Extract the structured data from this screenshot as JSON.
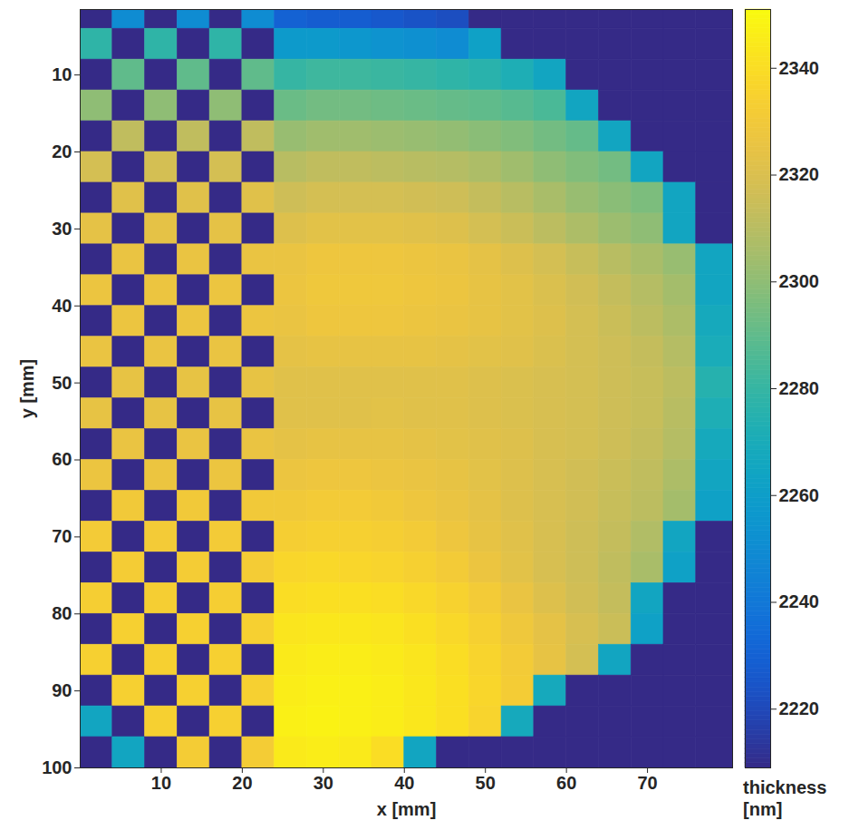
{
  "chart_data": {
    "type": "heatmap",
    "x_label": "x [mm]",
    "y_label": "y [mm]",
    "xlim": [
      0,
      80.5
    ],
    "ylim": [
      100,
      1.5
    ],
    "xticks": [
      10,
      20,
      30,
      40,
      50,
      60,
      70
    ],
    "yticks": [
      10,
      20,
      30,
      40,
      50,
      60,
      70,
      80,
      90,
      100
    ],
    "grid": false,
    "colorbar": {
      "label": "thickness [nm]",
      "range": [
        2209,
        2351
      ],
      "ticks": [
        2220,
        2240,
        2260,
        2280,
        2300,
        2320,
        2340
      ]
    },
    "cells": {
      "x_edges": [
        0,
        4,
        8,
        12,
        16,
        20,
        24,
        28,
        32,
        36,
        40,
        44,
        48,
        52,
        56,
        60,
        64,
        68,
        72,
        76,
        80.5
      ],
      "y_edges": [
        1.5,
        4,
        8,
        12,
        16,
        20,
        24,
        28,
        32,
        36,
        40,
        44,
        48,
        52,
        56,
        60,
        64,
        68,
        72,
        76,
        80,
        84,
        88,
        92,
        96,
        100
      ],
      "values": [
        [
          2209,
          2250,
          2209,
          2250,
          2209,
          2250,
          2230,
          2228,
          2228,
          2226,
          2224,
          2222,
          2209,
          2209,
          2209,
          2209,
          2209,
          2209,
          2209,
          2209
        ],
        [
          2278,
          2209,
          2278,
          2209,
          2278,
          2209,
          2258,
          2258,
          2256,
          2254,
          2252,
          2250,
          2262,
          2209,
          2209,
          2209,
          2209,
          2209,
          2209,
          2209
        ],
        [
          2209,
          2290,
          2209,
          2290,
          2209,
          2290,
          2280,
          2282,
          2282,
          2281,
          2280,
          2278,
          2276,
          2272,
          2265,
          2209,
          2209,
          2209,
          2209,
          2209
        ],
        [
          2300,
          2209,
          2300,
          2209,
          2300,
          2209,
          2292,
          2294,
          2294,
          2293,
          2292,
          2291,
          2290,
          2288,
          2285,
          2265,
          2209,
          2209,
          2209,
          2209
        ],
        [
          2209,
          2312,
          2209,
          2312,
          2209,
          2312,
          2302,
          2304,
          2304,
          2303,
          2302,
          2301,
          2299,
          2297,
          2294,
          2291,
          2265,
          2209,
          2209,
          2209
        ],
        [
          2318,
          2209,
          2318,
          2209,
          2318,
          2209,
          2310,
          2312,
          2312,
          2311,
          2310,
          2309,
          2307,
          2304,
          2300,
          2297,
          2294,
          2265,
          2209,
          2209
        ],
        [
          2209,
          2322,
          2209,
          2322,
          2209,
          2322,
          2316,
          2318,
          2318,
          2318,
          2317,
          2316,
          2313,
          2310,
          2306,
          2302,
          2299,
          2296,
          2265,
          2209
        ],
        [
          2324,
          2209,
          2324,
          2209,
          2324,
          2209,
          2321,
          2323,
          2323,
          2323,
          2322,
          2321,
          2318,
          2315,
          2311,
          2307,
          2303,
          2300,
          2265,
          2209
        ],
        [
          2209,
          2326,
          2209,
          2326,
          2209,
          2326,
          2326,
          2328,
          2328,
          2328,
          2327,
          2326,
          2324,
          2321,
          2318,
          2314,
          2310,
          2306,
          2302,
          2265
        ],
        [
          2327,
          2209,
          2327,
          2209,
          2327,
          2209,
          2327,
          2329,
          2329,
          2329,
          2328,
          2327,
          2325,
          2323,
          2320,
          2317,
          2313,
          2309,
          2305,
          2265
        ],
        [
          2209,
          2327,
          2209,
          2327,
          2209,
          2327,
          2326,
          2328,
          2328,
          2328,
          2327,
          2326,
          2325,
          2323,
          2321,
          2318,
          2315,
          2311,
          2307,
          2268
        ],
        [
          2326,
          2209,
          2326,
          2209,
          2326,
          2209,
          2324,
          2325,
          2325,
          2325,
          2325,
          2324,
          2323,
          2322,
          2320,
          2318,
          2316,
          2313,
          2309,
          2270
        ],
        [
          2209,
          2325,
          2209,
          2325,
          2209,
          2325,
          2322,
          2322,
          2322,
          2322,
          2322,
          2322,
          2321,
          2320,
          2319,
          2318,
          2316,
          2314,
          2311,
          2275
        ],
        [
          2325,
          2209,
          2325,
          2209,
          2325,
          2209,
          2322,
          2322,
          2322,
          2323,
          2322,
          2322,
          2321,
          2320,
          2319,
          2318,
          2316,
          2314,
          2310,
          2272
        ],
        [
          2209,
          2326,
          2209,
          2326,
          2209,
          2326,
          2324,
          2325,
          2325,
          2325,
          2324,
          2323,
          2322,
          2321,
          2319,
          2318,
          2316,
          2313,
          2309,
          2268
        ],
        [
          2327,
          2209,
          2327,
          2209,
          2327,
          2209,
          2327,
          2328,
          2328,
          2327,
          2326,
          2325,
          2323,
          2321,
          2319,
          2317,
          2315,
          2312,
          2307,
          2265
        ],
        [
          2209,
          2330,
          2209,
          2330,
          2209,
          2330,
          2330,
          2331,
          2331,
          2330,
          2328,
          2326,
          2324,
          2321,
          2319,
          2317,
          2314,
          2311,
          2305,
          2262
        ],
        [
          2331,
          2209,
          2331,
          2209,
          2331,
          2209,
          2333,
          2334,
          2334,
          2333,
          2331,
          2328,
          2325,
          2322,
          2319,
          2316,
          2313,
          2308,
          2265,
          2209
        ],
        [
          2209,
          2332,
          2209,
          2332,
          2209,
          2332,
          2337,
          2338,
          2337,
          2336,
          2334,
          2331,
          2327,
          2323,
          2319,
          2316,
          2312,
          2306,
          2262,
          2209
        ],
        [
          2333,
          2209,
          2333,
          2209,
          2333,
          2209,
          2340,
          2341,
          2341,
          2340,
          2338,
          2335,
          2331,
          2326,
          2321,
          2317,
          2313,
          2265,
          2209,
          2209
        ],
        [
          2209,
          2334,
          2209,
          2334,
          2209,
          2334,
          2343,
          2344,
          2344,
          2343,
          2341,
          2338,
          2334,
          2329,
          2324,
          2319,
          2315,
          2262,
          2209,
          2209
        ],
        [
          2334,
          2209,
          2334,
          2209,
          2334,
          2209,
          2345,
          2346,
          2346,
          2345,
          2343,
          2340,
          2336,
          2331,
          2325,
          2318,
          2265,
          2209,
          2209,
          2209
        ],
        [
          2209,
          2334,
          2209,
          2334,
          2209,
          2334,
          2346,
          2347,
          2347,
          2346,
          2344,
          2341,
          2337,
          2332,
          2268,
          2209,
          2209,
          2209,
          2209,
          2209
        ],
        [
          2265,
          2209,
          2334,
          2209,
          2334,
          2209,
          2347,
          2348,
          2347,
          2346,
          2344,
          2341,
          2336,
          2268,
          2209,
          2209,
          2209,
          2209,
          2209,
          2209
        ],
        [
          2209,
          2265,
          2209,
          2332,
          2209,
          2332,
          2345,
          2346,
          2345,
          2340,
          2265,
          2209,
          2209,
          2209,
          2209,
          2209,
          2209,
          2209,
          2209,
          2209
        ]
      ]
    }
  }
}
